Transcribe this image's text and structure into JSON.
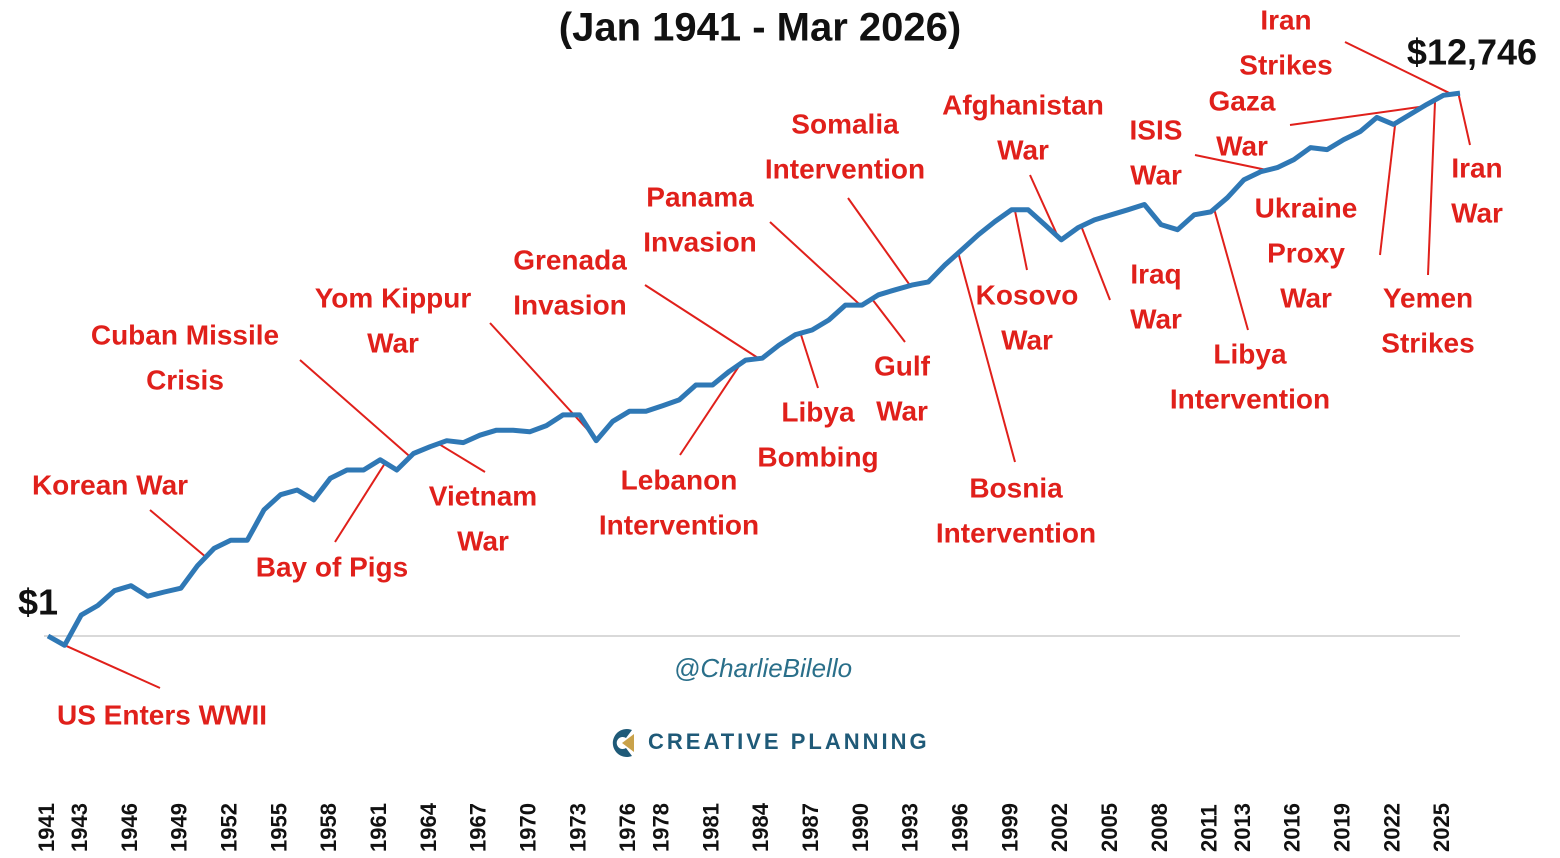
{
  "chart_data": {
    "type": "line",
    "title": "(Jan 1941 - Mar 2026)",
    "log_y": true,
    "grid": false,
    "x": [
      1941,
      1942,
      1943,
      1944,
      1945,
      1946,
      1947,
      1948,
      1949,
      1950,
      1951,
      1952,
      1953,
      1954,
      1955,
      1956,
      1957,
      1958,
      1959,
      1960,
      1961,
      1962,
      1963,
      1964,
      1965,
      1966,
      1967,
      1968,
      1969,
      1970,
      1971,
      1972,
      1973,
      1974,
      1975,
      1976,
      1977,
      1978,
      1979,
      1980,
      1981,
      1982,
      1983,
      1984,
      1985,
      1986,
      1987,
      1988,
      1989,
      1990,
      1991,
      1992,
      1993,
      1994,
      1995,
      1996,
      1997,
      1998,
      1999,
      2000,
      2001,
      2002,
      2003,
      2004,
      2005,
      2006,
      2007,
      2008,
      2009,
      2010,
      2011,
      2012,
      2013,
      2014,
      2015,
      2016,
      2017,
      2018,
      2019,
      2020,
      2021,
      2022,
      2023,
      2024,
      2025,
      2026
    ],
    "series": [
      {
        "name": "Growth of $1",
        "color": "#2f78b5",
        "values": [
          1,
          0.85,
          1.44,
          1.7,
          2.2,
          2.4,
          2.0,
          2.15,
          2.3,
          3.4,
          4.6,
          5.3,
          5.3,
          9.0,
          11.7,
          12.7,
          10.7,
          15.6,
          18,
          18,
          21.5,
          18,
          24,
          27,
          30,
          29,
          33,
          36,
          36,
          35,
          39,
          47,
          47,
          30,
          42,
          50,
          50,
          55,
          61,
          79,
          79,
          100,
          122,
          126,
          158,
          190,
          206,
          245,
          318,
          318,
          380,
          415,
          450,
          476,
          640,
          830,
          1080,
          1360,
          1670,
          1670,
          1290,
          990,
          1220,
          1400,
          1530,
          1670,
          1830,
          1290,
          1180,
          1530,
          1610,
          2060,
          2820,
          3240,
          3480,
          4000,
          4930,
          4760,
          5670,
          6530,
          8340,
          7380,
          8790,
          10460,
          12260,
          12746
        ]
      }
    ],
    "start_label": "$1",
    "end_label": "$12,746",
    "xlim": [
      1941,
      2026
    ],
    "ylim": [
      0.7,
      16000
    ],
    "xticks": [
      1941,
      1943,
      1946,
      1949,
      1952,
      1955,
      1958,
      1961,
      1964,
      1967,
      1970,
      1973,
      1976,
      1978,
      1981,
      1984,
      1987,
      1990,
      1993,
      1996,
      1999,
      2002,
      2005,
      2008,
      2011,
      2013,
      2016,
      2019,
      2022,
      2025
    ],
    "annotation_color": "#e0201b",
    "annotations": [
      {
        "x": 1941.9,
        "text": [
          "US Enters WWII"
        ]
      },
      {
        "x": 1950.5,
        "text": [
          "Korean War"
        ]
      },
      {
        "x": 1961.3,
        "text": [
          "Bay of Pigs"
        ]
      },
      {
        "x": 1962.8,
        "text": [
          "Cuban Missile",
          "Crisis"
        ]
      },
      {
        "x": 1973.8,
        "text": [
          "Yom Kippur",
          "War"
        ]
      },
      {
        "x": 1964.5,
        "text": [
          "Vietnam",
          "War"
        ]
      },
      {
        "x": 1983.8,
        "text": [
          "Grenada",
          "Invasion"
        ]
      },
      {
        "x": 1982.7,
        "text": [
          "Lebanon",
          "Intervention"
        ]
      },
      {
        "x": 1989.9,
        "text": [
          "Panama",
          "Invasion"
        ]
      },
      {
        "x": 1986.3,
        "text": [
          "Libya",
          "Bombing"
        ]
      },
      {
        "x": 1990.6,
        "text": [
          "Gulf",
          "War"
        ]
      },
      {
        "x": 1992.9,
        "text": [
          "Somalia",
          "Intervention"
        ]
      },
      {
        "x": 1995.8,
        "text": [
          "Bosnia",
          "Intervention"
        ]
      },
      {
        "x": 1999.2,
        "text": [
          "Kosovo",
          "War"
        ]
      },
      {
        "x": 2001.8,
        "text": [
          "Afghanistan",
          "War"
        ]
      },
      {
        "x": 2003.2,
        "text": [
          "Iraq",
          "War"
        ]
      },
      {
        "x": 2014.4,
        "text": [
          "ISIS",
          "War"
        ]
      },
      {
        "x": 2011.2,
        "text": [
          "Libya",
          "Intervention"
        ]
      },
      {
        "x": 2023.8,
        "text": [
          "Gaza",
          "War"
        ]
      },
      {
        "x": 2022.1,
        "text": [
          "Ukraine",
          "Proxy",
          "War"
        ]
      },
      {
        "x": 2025.5,
        "text": [
          "Iran",
          "Strikes"
        ]
      },
      {
        "x": 2024.5,
        "text": [
          "Yemen",
          "Strikes"
        ]
      },
      {
        "x": 2025.9,
        "text": [
          "Iran",
          "War"
        ]
      }
    ],
    "watermark": "@CharlieBilello",
    "brand": "CREATIVE PLANNING"
  }
}
